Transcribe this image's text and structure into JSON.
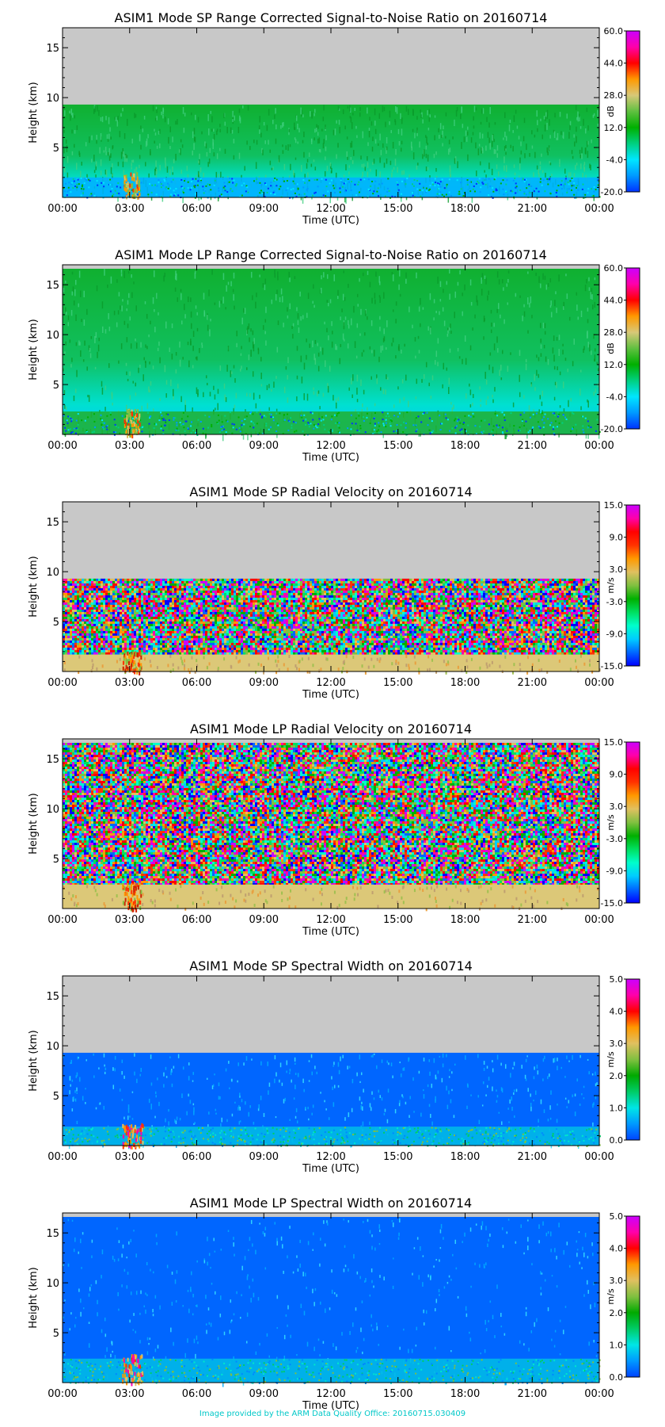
{
  "footer": "Image provided by the ARM Data Quality Office: 20160715.030409",
  "chart_data": [
    {
      "type": "heatmap",
      "title": "ASIM1 Mode SP Range Corrected Signal-to-Noise Ratio on 20160714",
      "xlabel": "Time (UTC)",
      "ylabel": "Height (km)",
      "x_ticks": [
        "00:00",
        "03:00",
        "06:00",
        "09:00",
        "12:00",
        "15:00",
        "18:00",
        "21:00",
        "00:00"
      ],
      "y_ticks": [
        5,
        10,
        15
      ],
      "ylim": [
        0,
        17
      ],
      "colorbar": {
        "unit": "dB",
        "ticks": [
          "60.0",
          "44.0",
          "28.0",
          "12.0",
          "-4.0",
          "-20.0"
        ],
        "range": [
          -20,
          60
        ]
      },
      "data_top_km": 9.3,
      "pattern": "snr"
    },
    {
      "type": "heatmap",
      "title": "ASIM1 Mode LP Range Corrected Signal-to-Noise Ratio on 20160714",
      "xlabel": "Time (UTC)",
      "ylabel": "Height (km)",
      "x_ticks": [
        "00:00",
        "03:00",
        "06:00",
        "09:00",
        "12:00",
        "15:00",
        "18:00",
        "21:00",
        "00:00"
      ],
      "y_ticks": [
        5,
        10,
        15
      ],
      "ylim": [
        0,
        17
      ],
      "colorbar": {
        "unit": "dB",
        "ticks": [
          "60.0",
          "44.0",
          "28.0",
          "12.0",
          "-4.0",
          "-20.0"
        ],
        "range": [
          -20,
          60
        ]
      },
      "data_top_km": 16.6,
      "pattern": "snr"
    },
    {
      "type": "heatmap",
      "title": "ASIM1 Mode SP Radial Velocity  on 20160714",
      "xlabel": "Time (UTC)",
      "ylabel": "Height (km)",
      "x_ticks": [
        "00:00",
        "03:00",
        "06:00",
        "09:00",
        "12:00",
        "15:00",
        "18:00",
        "21:00",
        "00:00"
      ],
      "y_ticks": [
        5,
        10,
        15
      ],
      "ylim": [
        0,
        17
      ],
      "colorbar": {
        "unit": "m/s",
        "ticks": [
          "15.0",
          "9.0",
          "3.0",
          "-3.0",
          "-9.0",
          "-15.0"
        ],
        "range": [
          -15,
          15
        ]
      },
      "data_top_km": 9.3,
      "pattern": "velocity"
    },
    {
      "type": "heatmap",
      "title": "ASIM1 Mode LP Radial Velocity  on 20160714",
      "xlabel": "Time (UTC)",
      "ylabel": "Height (km)",
      "x_ticks": [
        "00:00",
        "03:00",
        "06:00",
        "09:00",
        "12:00",
        "15:00",
        "18:00",
        "21:00",
        "00:00"
      ],
      "y_ticks": [
        5,
        10,
        15
      ],
      "ylim": [
        0,
        17
      ],
      "colorbar": {
        "unit": "m/s",
        "ticks": [
          "15.0",
          "9.0",
          "3.0",
          "-3.0",
          "-9.0",
          "-15.0"
        ],
        "range": [
          -15,
          15
        ]
      },
      "data_top_km": 16.6,
      "pattern": "velocity"
    },
    {
      "type": "heatmap",
      "title": "ASIM1 Mode SP Spectral Width  on 20160714",
      "xlabel": "Time (UTC)",
      "ylabel": "Height (km)",
      "x_ticks": [
        "00:00",
        "03:00",
        "06:00",
        "09:00",
        "12:00",
        "15:00",
        "18:00",
        "21:00",
        "00:00"
      ],
      "y_ticks": [
        5,
        10,
        15
      ],
      "ylim": [
        0,
        17
      ],
      "colorbar": {
        "unit": "m/s",
        "ticks": [
          "5.0",
          "4.0",
          "3.0",
          "2.0",
          "1.0",
          "0.0"
        ],
        "range": [
          0,
          5
        ]
      },
      "data_top_km": 9.3,
      "pattern": "width"
    },
    {
      "type": "heatmap",
      "title": "ASIM1 Mode LP Spectral Width  on 20160714",
      "xlabel": "Time (UTC)",
      "ylabel": "Height (km)",
      "x_ticks": [
        "00:00",
        "03:00",
        "06:00",
        "09:00",
        "12:00",
        "15:00",
        "18:00",
        "21:00",
        "00:00"
      ],
      "y_ticks": [
        5,
        10,
        15
      ],
      "ylim": [
        0,
        17
      ],
      "colorbar": {
        "unit": "m/s",
        "ticks": [
          "5.0",
          "4.0",
          "3.0",
          "2.0",
          "1.0",
          "0.0"
        ],
        "range": [
          0,
          5
        ]
      },
      "data_top_km": 16.6,
      "pattern": "width"
    }
  ]
}
